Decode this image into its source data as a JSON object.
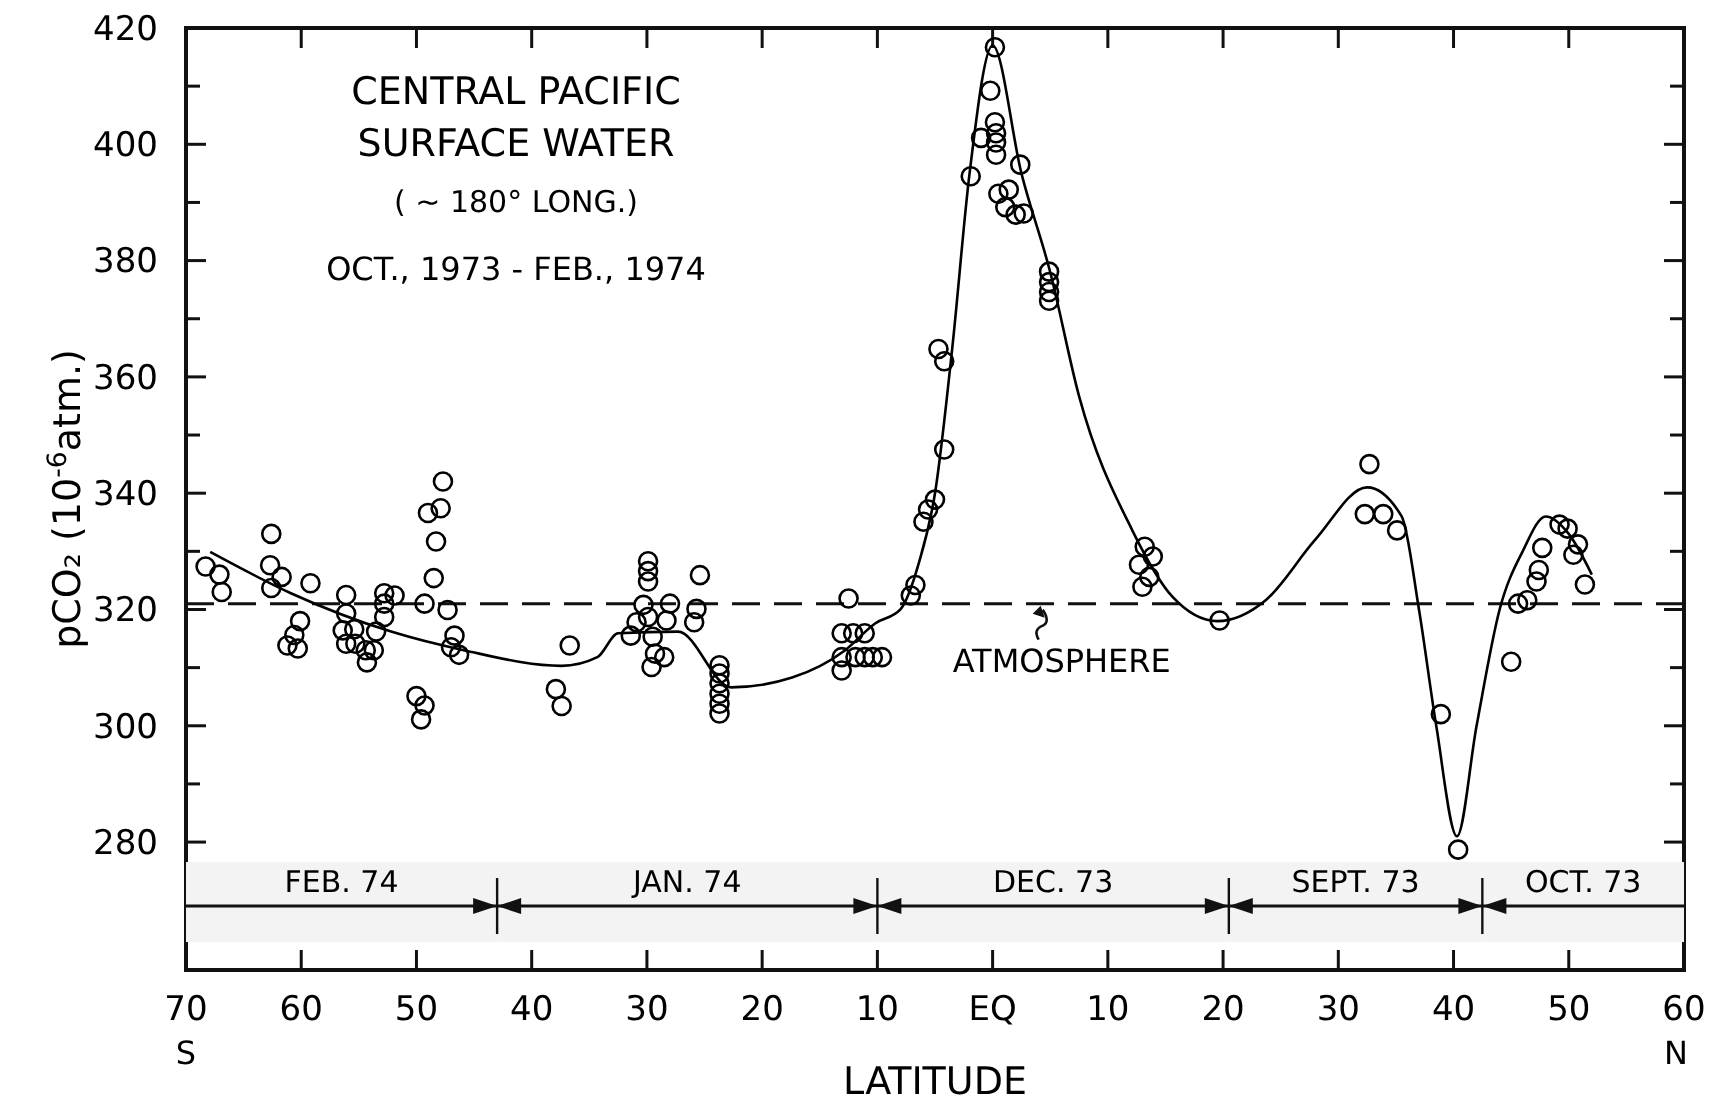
{
  "chart_data": {
    "type": "scatter",
    "title": "CENTRAL PACIFIC\nSURFACE WATER",
    "subtitle": "( ~ 180° LONG.)",
    "xlabel": "LATITUDE",
    "ylabel": "pCO₂ (10$^{-6}$atm.)",
    "annotations": [
      "OCT., 1973 - FEB., 1974",
      "S",
      "N"
    ],
    "xlim": [
      -70,
      60
    ],
    "xticks": [
      {
        "value": -70,
        "label": "70"
      },
      {
        "value": -60,
        "label": "60"
      },
      {
        "value": -50,
        "label": "50"
      },
      {
        "value": -40,
        "label": "40"
      },
      {
        "value": -30,
        "label": "30"
      },
      {
        "value": -20,
        "label": "20"
      },
      {
        "value": -10,
        "label": "10"
      },
      {
        "value": 0,
        "label": "EQ"
      },
      10,
      20,
      30,
      40,
      50,
      60
    ],
    "ylim": [
      258,
      420
    ],
    "yticks": [
      280,
      {
        "value": 290,
        "label": null
      },
      300,
      {
        "value": 310,
        "label": null
      },
      320,
      {
        "value": 330,
        "label": null
      },
      340,
      {
        "value": 350,
        "label": null
      },
      360,
      {
        "value": 370,
        "label": null
      },
      380,
      {
        "value": 390,
        "label": null
      },
      400,
      {
        "value": 410,
        "label": null
      },
      420
    ],
    "marker": "circle",
    "series": [
      {
        "type": "scatter",
        "color": "#000000",
        "x": [
          -68.3,
          -67.1,
          -66.9,
          -62.6,
          -62.7,
          -61.7,
          -62.6,
          -59.2,
          -60.1,
          -60.6,
          -61.2,
          -60.3,
          -56.1,
          -56.1,
          -56.4,
          -56.1,
          -55.4,
          -55.3,
          -54.4,
          -54.3,
          -53.7,
          -53.5,
          -52.8,
          -52.8,
          -52.8,
          -51.9,
          -49.3,
          -49.0,
          -47.9,
          -47.7,
          -48.3,
          -48.5,
          -47.3,
          -46.7,
          -47.0,
          -46.3,
          -50.0,
          -49.3,
          -49.6,
          -37.9,
          -37.4,
          -36.7,
          -29.9,
          -29.9,
          -29.9,
          -30.3,
          -30.9,
          -31.4,
          -29.9,
          -29.5,
          -29.3,
          -29.6,
          -28.5,
          -28.0,
          -28.3,
          -25.9,
          -25.7,
          -25.4,
          -23.7,
          -23.7,
          -23.7,
          -23.7,
          -23.7,
          -23.7,
          -12.5,
          -13.1,
          -12.1,
          -11.1,
          -13.1,
          -13.1,
          -11.9,
          -11.1,
          -10.4,
          -9.6,
          -7.1,
          -6.7,
          -6.0,
          -5.6,
          -5.0,
          -4.2,
          -4.7,
          -4.2,
          -1.9,
          -1.0,
          -0.2,
          0.2,
          0.2,
          0.3,
          0.3,
          0.3,
          2.4,
          1.4,
          0.5,
          1.1,
          2.0,
          2.7,
          4.9,
          4.9,
          4.9,
          4.9,
          13.2,
          13.9,
          12.7,
          13.6,
          13.0,
          19.7,
          32.7,
          32.3,
          33.9,
          35.1,
          38.9,
          40.4,
          45.0,
          45.6,
          46.4,
          47.2,
          47.4,
          47.7,
          49.2,
          49.9,
          50.8,
          50.4,
          51.4
        ],
        "values": [
          327.4,
          326,
          323,
          333,
          327.6,
          325.6,
          323.7,
          324.5,
          318,
          315.6,
          313.8,
          313.3,
          322.5,
          319.3,
          316.4,
          314.1,
          316.6,
          314.1,
          313,
          310.9,
          313,
          316.2,
          318.7,
          321,
          322.8,
          322.4,
          321,
          336.6,
          337.4,
          342,
          331.7,
          325.4,
          319.9,
          315.5,
          313.5,
          312.2,
          305.1,
          303.5,
          301.1,
          306.3,
          303.4,
          313.8,
          328.3,
          326.6,
          324.8,
          320.8,
          317.8,
          315.5,
          318.7,
          315.3,
          312.4,
          310.1,
          311.8,
          321,
          318.1,
          317.8,
          320.1,
          325.9,
          310.4,
          309,
          307.3,
          305.5,
          303.8,
          302.1,
          321.9,
          315.9,
          315.9,
          315.9,
          311.8,
          309.5,
          311.8,
          311.8,
          311.8,
          311.8,
          322.4,
          324.2,
          335.1,
          337.2,
          338.9,
          347.5,
          364.8,
          362.7,
          394.5,
          401.1,
          409.2,
          416.7,
          403.8,
          401.9,
          400.3,
          398.2,
          396.5,
          392.2,
          391.5,
          389.2,
          387.9,
          388.1,
          378.1,
          376.3,
          374.6,
          373.1,
          330.8,
          329.1,
          327.7,
          325.6,
          323.9,
          318.1,
          345,
          336.4,
          336.4,
          333.6,
          302,
          278.7,
          311,
          321,
          321.6,
          324.8,
          326.8,
          330.6,
          334.6,
          333.9,
          331.2,
          329.4,
          324.3
        ]
      },
      {
        "type": "line",
        "color": "#000000",
        "marker": "none",
        "x": [
          -67.9,
          -60.9,
          -52.2,
          -45.9,
          -37.4,
          -34.3,
          -32.5,
          -27.3,
          -22.7,
          -17.4,
          -12.8,
          -10.2,
          -8,
          -6.4,
          -5,
          -3.5,
          -2,
          0,
          2.5,
          5,
          7.5,
          12.1,
          15.6,
          19.5,
          23.7,
          28,
          32.5,
          35.5,
          37,
          38.5,
          40.3,
          42,
          44,
          46,
          48,
          50,
          52
        ],
        "values": [
          329.9,
          322.8,
          316.2,
          313,
          310.3,
          311.8,
          315.9,
          316.2,
          306.6,
          308.3,
          313,
          317.6,
          320,
          328,
          340,
          365,
          395,
          417,
          395,
          378,
          356.7,
          333.7,
          322.2,
          318,
          321.6,
          332,
          341,
          336,
          320,
          300,
          281,
          300,
          320,
          330,
          336,
          333,
          326
        ]
      }
    ],
    "ref_lines": [
      {
        "axis": "y",
        "value": 321,
        "label": "ATMOSPHERE",
        "line_style": "dashed"
      }
    ],
    "bands": [
      {
        "axis": "x",
        "from": -70,
        "to": -43,
        "label": "FEB. 74"
      },
      {
        "axis": "x",
        "from": -43,
        "to": -10,
        "label": "JAN. 74"
      },
      {
        "axis": "x",
        "from": -10,
        "to": 20.5,
        "label": "DEC. 73"
      },
      {
        "axis": "x",
        "from": 20.5,
        "to": 42.5,
        "label": "SEPT. 73"
      },
      {
        "axis": "x",
        "from": 42.5,
        "to": 60,
        "label": "OCT. 73"
      }
    ]
  }
}
